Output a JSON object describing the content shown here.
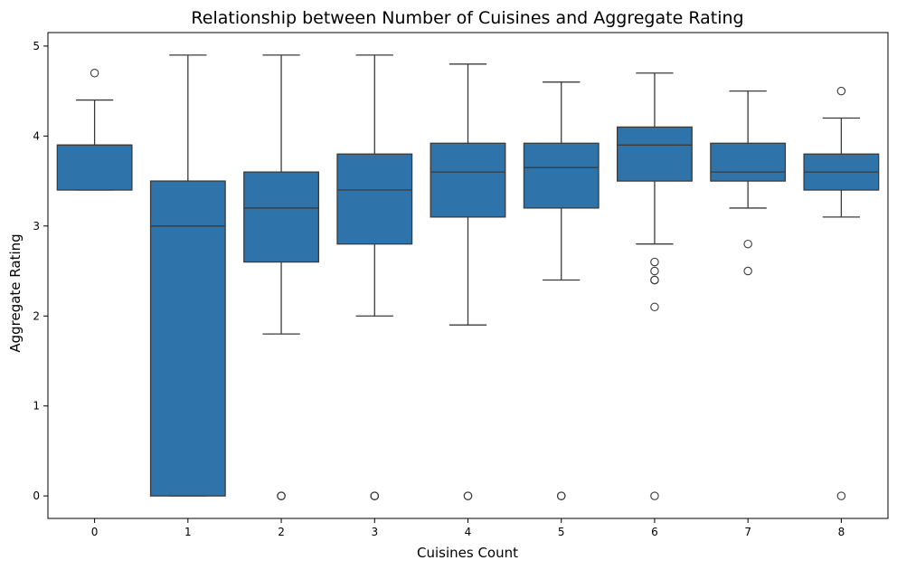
{
  "chart_data": {
    "type": "box",
    "title": "Relationship between Number of Cuisines and Aggregate Rating",
    "xlabel": "Cuisines Count",
    "ylabel": "Aggregate Rating",
    "categories": [
      "0",
      "1",
      "2",
      "3",
      "4",
      "5",
      "6",
      "7",
      "8"
    ],
    "yticks": [
      0,
      1,
      2,
      3,
      4,
      5
    ],
    "ylim": [
      -0.25,
      5.15
    ],
    "grid": false,
    "box_color": "#2e73aa",
    "line_color": "#3b3b3b",
    "boxes": [
      {
        "category": "0",
        "whisker_low": 3.4,
        "q1": 3.4,
        "median": 3.9,
        "q3": 3.9,
        "whisker_high": 4.4,
        "outliers": [
          4.7
        ]
      },
      {
        "category": "1",
        "whisker_low": 0.0,
        "q1": 0.0,
        "median": 3.0,
        "q3": 3.5,
        "whisker_high": 4.9,
        "outliers": []
      },
      {
        "category": "2",
        "whisker_low": 1.8,
        "q1": 2.6,
        "median": 3.2,
        "q3": 3.6,
        "whisker_high": 4.9,
        "outliers": [
          0,
          0,
          0
        ]
      },
      {
        "category": "3",
        "whisker_low": 2.0,
        "q1": 2.8,
        "median": 3.4,
        "q3": 3.8,
        "whisker_high": 4.9,
        "outliers": [
          0,
          0,
          0
        ]
      },
      {
        "category": "4",
        "whisker_low": 1.9,
        "q1": 3.1,
        "median": 3.6,
        "q3": 3.92,
        "whisker_high": 4.8,
        "outliers": [
          0,
          0
        ]
      },
      {
        "category": "5",
        "whisker_low": 2.4,
        "q1": 3.2,
        "median": 3.65,
        "q3": 3.92,
        "whisker_high": 4.6,
        "outliers": [
          0,
          0
        ]
      },
      {
        "category": "6",
        "whisker_low": 2.8,
        "q1": 3.5,
        "median": 3.9,
        "q3": 4.1,
        "whisker_high": 4.7,
        "outliers": [
          2.6,
          2.5,
          2.4,
          2.4,
          2.1,
          0
        ]
      },
      {
        "category": "7",
        "whisker_low": 3.2,
        "q1": 3.5,
        "median": 3.6,
        "q3": 3.92,
        "whisker_high": 4.5,
        "outliers": [
          2.8,
          2.5
        ]
      },
      {
        "category": "8",
        "whisker_low": 3.1,
        "q1": 3.4,
        "median": 3.6,
        "q3": 3.8,
        "whisker_high": 4.2,
        "outliers": [
          4.5,
          0
        ]
      }
    ]
  }
}
